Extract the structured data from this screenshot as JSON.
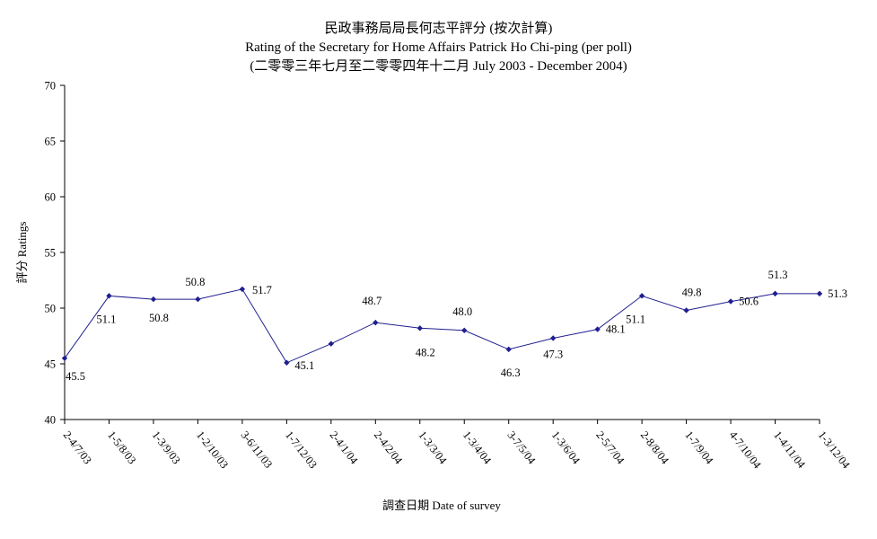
{
  "chart_data": {
    "type": "line",
    "title": "民政事務局局長何志平評分 (按次計算)",
    "subtitle": "Rating of the Secretary for Home Affairs Patrick Ho Chi-ping (per poll)",
    "subtitle2": "(二零零三年七月至二零零四年十二月 July 2003 - December 2004)",
    "xlabel": "調查日期 Date of survey",
    "ylabel": "評分 Ratings",
    "ylim": [
      40,
      70
    ],
    "yticks": [
      40,
      45,
      50,
      55,
      60,
      65,
      70
    ],
    "grid": false,
    "line_color": "#1f1f8f",
    "categories": [
      "2-4/7/03",
      "1-5/8/03",
      "1-3/9/03",
      "1-2/10/03",
      "3-6/11/03",
      "1-7/12/03",
      "2-4/1/04",
      "2-4/2/04",
      "1-3/3/04",
      "1-3/4/04",
      "3-7/5/04",
      "1-3/6/04",
      "2-5/7/04",
      "2-8/8/04",
      "1-7/9/04",
      "4-7/10/04",
      "1-4/11/04",
      "1-3/12/04"
    ],
    "values": [
      45.5,
      51.1,
      50.8,
      50.8,
      51.7,
      45.1,
      46.8,
      48.7,
      48.2,
      48.0,
      46.3,
      47.3,
      48.1,
      51.1,
      49.8,
      50.6,
      51.3,
      51.3
    ],
    "data_labels": [
      "45.5",
      "51.1",
      "50.8",
      "50.8",
      "51.7",
      "45.1",
      "",
      "48.7",
      "48.2",
      "48.0",
      "46.3",
      "47.3",
      "48.1",
      "51.1",
      "49.8",
      "50.6",
      "51.3",
      "51.3"
    ]
  }
}
